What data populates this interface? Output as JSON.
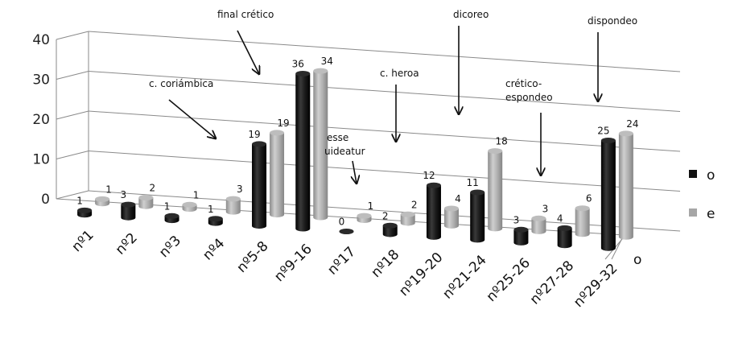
{
  "chart_data": {
    "type": "bar",
    "title": "",
    "xlabel": "",
    "ylabel": "",
    "ylim": [
      0,
      40
    ],
    "yticks": [
      "0",
      "10",
      "20",
      "30",
      "40"
    ],
    "grid": true,
    "legend_position": "right",
    "categories": [
      "nº1",
      "nº2",
      "nº3",
      "nº4",
      "nº5-8",
      "nº9-16",
      "nº17",
      "nº18",
      "nº19-20",
      "nº21-24",
      "nº25-26",
      "nº27-28",
      "nº29-32"
    ],
    "depth_axis_labels": [
      "o"
    ],
    "series": [
      {
        "name": "o",
        "values": [
          1,
          3,
          1,
          1,
          19,
          36,
          0,
          2,
          12,
          11,
          3,
          4,
          25
        ],
        "color": "#111111"
      },
      {
        "name": "e",
        "values": [
          1,
          2,
          1,
          3,
          19,
          34,
          1,
          2,
          4,
          18,
          3,
          6,
          24
        ],
        "color": "#a6a6a6"
      }
    ],
    "annotations": [
      {
        "text": "final crético",
        "category": "nº9-16"
      },
      {
        "text": "c. coriámbica",
        "category": "nº5-8"
      },
      {
        "text": "esse uideatur",
        "category": "nº18"
      },
      {
        "text": "c. heroa",
        "category": "nº19-20"
      },
      {
        "text": "dicoreo",
        "category": "nº21-24"
      },
      {
        "text": "crético-espondeo",
        "category": "nº27-28"
      },
      {
        "text": "dispondeo",
        "category": "nº29-32"
      }
    ]
  }
}
